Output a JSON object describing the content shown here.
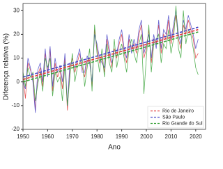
{
  "chart_data": {
    "type": "line",
    "xlabel": "Ano",
    "ylabel": "Diferença relativa (%)",
    "x": [
      1950,
      1951,
      1952,
      1953,
      1954,
      1955,
      1956,
      1957,
      1958,
      1959,
      1960,
      1961,
      1962,
      1963,
      1964,
      1965,
      1966,
      1967,
      1968,
      1969,
      1970,
      1971,
      1972,
      1973,
      1974,
      1975,
      1976,
      1977,
      1978,
      1979,
      1980,
      1981,
      1982,
      1983,
      1984,
      1985,
      1986,
      1987,
      1988,
      1989,
      1990,
      1991,
      1992,
      1993,
      1994,
      1995,
      1996,
      1997,
      1998,
      1999,
      2000,
      2001,
      2002,
      2003,
      2004,
      2005,
      2006,
      2007,
      2008,
      2009,
      2010,
      2011,
      2012,
      2013,
      2014,
      2015,
      2016,
      2017,
      2018,
      2019,
      2020,
      2021
    ],
    "trend_x": [
      1950,
      2021
    ],
    "series": [
      {
        "name": "Rio de Janeiro",
        "color": "#e0383a",
        "trend": [
          1,
          22
        ],
        "values": [
          2,
          -7,
          8,
          5,
          2,
          -12,
          3,
          6,
          -2,
          12,
          4,
          14,
          -4,
          8,
          2,
          5,
          -3,
          10,
          -12,
          6,
          10,
          4,
          8,
          12,
          6,
          2,
          9,
          10,
          -2,
          22,
          14,
          8,
          10,
          4,
          18,
          12,
          6,
          14,
          10,
          16,
          20,
          12,
          8,
          18,
          14,
          16,
          12,
          20,
          24,
          10,
          14,
          22,
          8,
          18,
          16,
          24,
          12,
          20,
          18,
          26,
          16,
          22,
          28,
          18,
          14,
          24,
          20,
          26,
          22,
          18,
          10,
          12
        ]
      },
      {
        "name": "São Paulo",
        "color": "#4a48c8",
        "trend": [
          2,
          23
        ],
        "values": [
          0,
          -3,
          10,
          6,
          0,
          -13,
          5,
          8,
          0,
          14,
          2,
          15,
          -2,
          10,
          4,
          7,
          0,
          12,
          -10,
          8,
          8,
          6,
          10,
          14,
          4,
          4,
          11,
          8,
          0,
          20,
          16,
          10,
          8,
          6,
          20,
          14,
          8,
          12,
          12,
          18,
          22,
          14,
          10,
          20,
          12,
          18,
          14,
          22,
          26,
          12,
          16,
          20,
          10,
          20,
          14,
          26,
          14,
          22,
          20,
          28,
          18,
          24,
          30,
          20,
          16,
          26,
          22,
          28,
          24,
          20,
          14,
          18
        ]
      },
      {
        "name": "Rio Grande do Sul",
        "color": "#3aa33a",
        "trend": [
          0,
          21
        ],
        "values": [
          4,
          -2,
          6,
          2,
          4,
          -8,
          -1,
          4,
          -4,
          10,
          6,
          10,
          -6,
          4,
          0,
          2,
          -8,
          8,
          -10,
          2,
          12,
          0,
          6,
          8,
          10,
          -2,
          6,
          14,
          -4,
          24,
          12,
          4,
          14,
          2,
          16,
          8,
          4,
          18,
          6,
          12,
          16,
          10,
          4,
          14,
          18,
          12,
          8,
          16,
          20,
          -5,
          10,
          24,
          4,
          16,
          18,
          20,
          8,
          16,
          14,
          22,
          12,
          18,
          32,
          14,
          10,
          30,
          16,
          22,
          20,
          14,
          6,
          3
        ]
      }
    ],
    "xlim": [
      1950,
      2024
    ],
    "xticks": [
      1950,
      1960,
      1970,
      1980,
      1990,
      2000,
      2010,
      2020
    ],
    "ylim": [
      -20,
      33
    ],
    "yticks": [
      -20,
      -10,
      0,
      10,
      20,
      30
    ],
    "legend": "lower right"
  }
}
